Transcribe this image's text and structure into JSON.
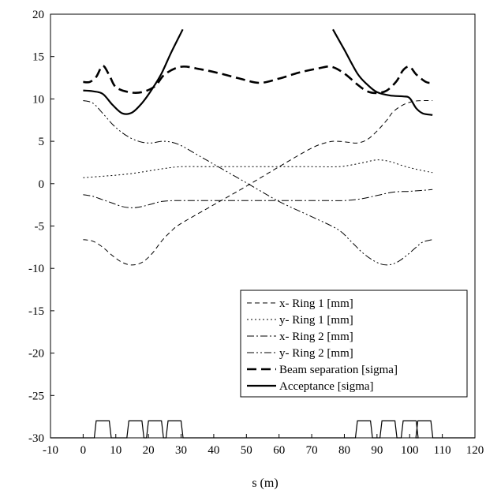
{
  "chart_data": {
    "type": "line",
    "title": "",
    "xlabel": "s (m)",
    "ylabel": "",
    "xlim": [
      -10,
      120
    ],
    "ylim": [
      -30,
      20
    ],
    "x_ticks": [
      -10,
      0,
      10,
      20,
      30,
      40,
      50,
      60,
      70,
      80,
      90,
      100,
      110,
      120
    ],
    "y_ticks": [
      -30,
      -25,
      -20,
      -15,
      -10,
      -5,
      0,
      5,
      10,
      15,
      20
    ],
    "grid": false,
    "legend_position": "bottom-right",
    "series": [
      {
        "name": "x- Ring 1 [mm]",
        "style": "dashed",
        "x": [
          0,
          3,
          6,
          9,
          12,
          15,
          18,
          21,
          24,
          27,
          30,
          40,
          50,
          60,
          70,
          75,
          78,
          81,
          84,
          87,
          90,
          93,
          95,
          98,
          101,
          104,
          107
        ],
        "y": [
          -6.6,
          -6.8,
          -7.5,
          -8.5,
          -9.3,
          -9.6,
          -9.3,
          -8.3,
          -6.8,
          -5.6,
          -4.7,
          -2.5,
          -0.3,
          2.0,
          4.2,
          4.9,
          5.0,
          4.9,
          4.8,
          5.2,
          6.2,
          7.5,
          8.5,
          9.3,
          9.7,
          9.8,
          9.8
        ]
      },
      {
        "name": "y- Ring 1 [mm]",
        "style": "dotted",
        "x": [
          0,
          5,
          10,
          15,
          20,
          25,
          30,
          40,
          50,
          60,
          70,
          78,
          82,
          86,
          90,
          94,
          98,
          102,
          107
        ],
        "y": [
          0.7,
          0.85,
          1.0,
          1.2,
          1.5,
          1.8,
          2.0,
          2.0,
          2.0,
          2.0,
          2.0,
          2.0,
          2.2,
          2.5,
          2.8,
          2.6,
          2.1,
          1.7,
          1.3
        ]
      },
      {
        "name": "x- Ring 2 [mm]",
        "style": "dashdot",
        "x": [
          0,
          3,
          6,
          9,
          12,
          15,
          18,
          21,
          24,
          28,
          35,
          45,
          55,
          65,
          75,
          80,
          85,
          90,
          95,
          100,
          107
        ],
        "y": [
          -1.3,
          -1.5,
          -1.9,
          -2.3,
          -2.7,
          -2.85,
          -2.7,
          -2.4,
          -2.1,
          -2.0,
          -2.0,
          -2.0,
          -2.0,
          -2.0,
          -2.0,
          -2.0,
          -1.8,
          -1.4,
          -1.0,
          -0.9,
          -0.7
        ]
      },
      {
        "name": "y- Ring 2 [mm]",
        "style": "dashdotdot",
        "x": [
          0,
          3,
          6,
          9,
          12,
          15,
          18,
          21,
          24,
          27,
          30,
          35,
          40,
          50,
          60,
          70,
          78,
          82,
          86,
          90,
          93,
          96,
          99,
          102,
          104,
          107
        ],
        "y": [
          9.8,
          9.5,
          8.3,
          7.0,
          6.0,
          5.3,
          4.9,
          4.8,
          5.0,
          4.9,
          4.5,
          3.4,
          2.3,
          0.1,
          -2.1,
          -3.9,
          -5.4,
          -6.8,
          -8.3,
          -9.3,
          -9.6,
          -9.3,
          -8.5,
          -7.5,
          -6.9,
          -6.6
        ]
      },
      {
        "name": "Beam separation [sigma]",
        "style": "heavy-dashed",
        "x": [
          0,
          2,
          4,
          6,
          8,
          10,
          14,
          18,
          22,
          25,
          30,
          36,
          42,
          48,
          54,
          60,
          66,
          72,
          76,
          80,
          84,
          87,
          90,
          93,
          96,
          98,
          100,
          102,
          105,
          107
        ],
        "y": [
          12.0,
          12.0,
          12.6,
          13.9,
          12.8,
          11.4,
          10.8,
          10.8,
          11.5,
          12.9,
          13.8,
          13.5,
          13.0,
          12.4,
          11.9,
          12.4,
          13.1,
          13.6,
          13.8,
          13.0,
          11.7,
          10.9,
          10.7,
          11.0,
          12.1,
          13.4,
          13.8,
          12.9,
          12.0,
          11.9
        ]
      },
      {
        "name": "Acceptance [sigma]",
        "style": "solid",
        "x": [
          0,
          3,
          6,
          9,
          12,
          15,
          18,
          21,
          24,
          27,
          30.5
        ],
        "y": [
          11.0,
          10.9,
          10.6,
          9.3,
          8.3,
          8.4,
          9.5,
          11.1,
          13.0,
          15.5,
          18.2
        ],
        "x2": [
          76.5,
          80,
          84,
          87,
          90,
          94,
          98,
          100,
          102,
          104,
          107
        ],
        "y2": [
          18.2,
          15.8,
          13.0,
          11.7,
          10.8,
          10.4,
          10.3,
          10.1,
          8.9,
          8.3,
          8.1
        ]
      }
    ],
    "magnets": {
      "baseline": -30,
      "top": -28,
      "centers": [
        6,
        16,
        22,
        28,
        86,
        93.5,
        100,
        104.5
      ]
    }
  }
}
